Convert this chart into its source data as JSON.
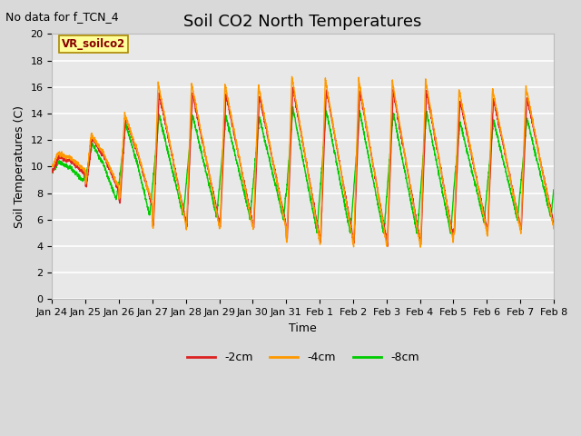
{
  "title": "Soil CO2 North Temperatures",
  "no_data_label": "No data for f_TCN_4",
  "ylabel": "Soil Temperatures (C)",
  "xlabel": "Time",
  "legend_label": "VR_soilco2",
  "ylim": [
    0,
    20
  ],
  "yticks": [
    0,
    2,
    4,
    6,
    8,
    10,
    12,
    14,
    16,
    18,
    20
  ],
  "xtick_labels": [
    "Jan 24",
    "Jan 25",
    "Jan 26",
    "Jan 27",
    "Jan 28",
    "Jan 29",
    "Jan 30",
    "Jan 31",
    "Feb 1",
    "Feb 2",
    "Feb 3",
    "Feb 4",
    "Feb 5",
    "Feb 6",
    "Feb 7",
    "Feb 8"
  ],
  "line_colors": {
    "2cm": "#dd2222",
    "4cm": "#ff9900",
    "8cm": "#00cc00"
  },
  "legend_entries": [
    "-2cm",
    "-4cm",
    "-8cm"
  ],
  "legend_colors": [
    "#dd2222",
    "#ff9900",
    "#00cc00"
  ],
  "fig_bg_color": "#d9d9d9",
  "plot_bg_color": "#e8e8e8",
  "grid_color": "#ffffff",
  "title_fontsize": 13,
  "label_fontsize": 9,
  "tick_fontsize": 8,
  "no_data_fontsize": 9,
  "legend_box_facecolor": "#ffff99",
  "legend_box_edgecolor": "#aa8800",
  "legend_box_textcolor": "#880000"
}
